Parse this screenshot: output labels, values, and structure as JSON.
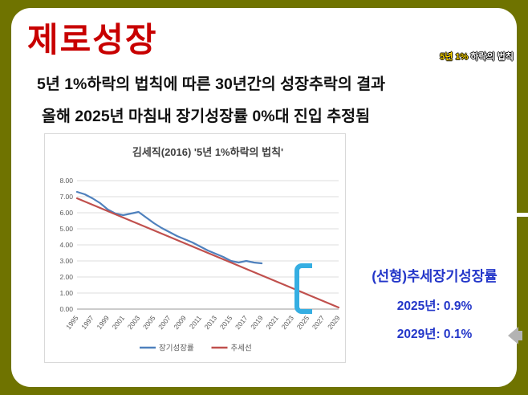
{
  "slide": {
    "title": "제로성장",
    "badge": {
      "part1": "5년 1%",
      "part2": " 하락의 법칙"
    },
    "subtitle_line1": "5년 1%하락의 법칙에 따른 30년간의 성장추락의 결과",
    "subtitle_line2": "올해 2025년 마침내 장기성장률 0%대 진입 추정됨"
  },
  "annotation": {
    "heading": "(선형)추세장기성장률",
    "line1": "2025년: 0.9%",
    "line2": "2029년: 0.1%"
  },
  "colors": {
    "background_olive": "#6f7300",
    "title_red": "#c80000",
    "annotation_blue": "#2336c9",
    "bracket_cyan": "#35aee2",
    "series_blue": "#4f81bd",
    "series_red": "#c0504d"
  },
  "chart_data": {
    "type": "line",
    "title": "김세직(2016) '5년 1%하락의 법칙'",
    "x": [
      1995,
      1996,
      1997,
      1998,
      1999,
      2000,
      2001,
      2002,
      2003,
      2004,
      2005,
      2006,
      2007,
      2008,
      2009,
      2010,
      2011,
      2012,
      2013,
      2014,
      2015,
      2016,
      2017,
      2018,
      2019,
      2020,
      2021,
      2022,
      2023,
      2024,
      2025,
      2026,
      2027,
      2028,
      2029
    ],
    "xticks": [
      1995,
      1997,
      1999,
      2001,
      2003,
      2005,
      2007,
      2009,
      2011,
      2013,
      2015,
      2017,
      2019,
      2021,
      2023,
      2025,
      2027,
      2029
    ],
    "ylim": [
      0,
      8
    ],
    "ytick_step": 1,
    "grid": true,
    "legend_position": "bottom",
    "series": [
      {
        "name": "장기성장률",
        "color": "#4f81bd",
        "values": [
          7.3,
          7.15,
          6.9,
          6.6,
          6.2,
          5.95,
          5.85,
          5.95,
          6.05,
          5.7,
          5.35,
          5.05,
          4.8,
          4.55,
          4.35,
          4.15,
          3.9,
          3.65,
          3.45,
          3.25,
          3.0,
          2.9,
          3.0,
          2.9,
          2.85,
          null,
          null,
          null,
          null,
          null,
          null,
          null,
          null,
          null,
          null
        ]
      },
      {
        "name": "추세선",
        "color": "#c0504d",
        "values": [
          6.9,
          6.7,
          6.5,
          6.3,
          6.1,
          5.9,
          5.7,
          5.5,
          5.3,
          5.1,
          4.9,
          4.7,
          4.5,
          4.3,
          4.1,
          3.9,
          3.7,
          3.5,
          3.3,
          3.1,
          2.9,
          2.7,
          2.5,
          2.3,
          2.1,
          1.9,
          1.7,
          1.5,
          1.3,
          1.1,
          0.9,
          0.7,
          0.5,
          0.3,
          0.1
        ]
      }
    ]
  }
}
